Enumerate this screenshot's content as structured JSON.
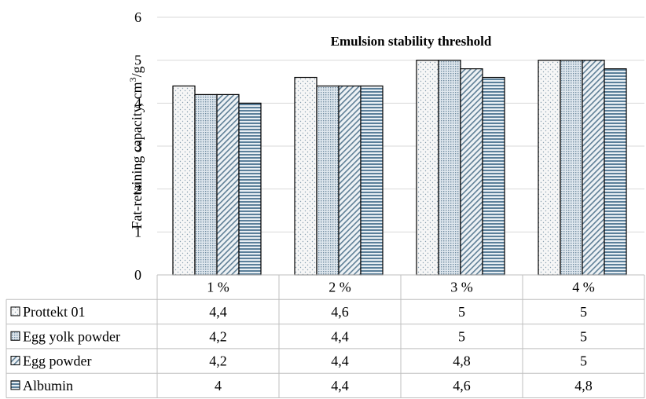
{
  "chart_data": {
    "type": "bar",
    "title": "",
    "annotation": "Emulsion stability threshold",
    "xlabel": "",
    "ylabel_main": "Fat-retaining capacity, cm",
    "ylabel_sup": "3",
    "ylabel_tail": "/g",
    "ylim": [
      0,
      6
    ],
    "yticks": [
      "0",
      "1",
      "2",
      "3",
      "4",
      "5",
      "6"
    ],
    "grid": true,
    "legend": "data-table",
    "categories": [
      "1 %",
      "2 %",
      "3 %",
      "4 %"
    ],
    "series": [
      {
        "name": "Prottekt 01",
        "values": [
          4.4,
          4.6,
          5,
          5
        ],
        "labels": [
          "4,4",
          "4,6",
          "5",
          "5"
        ],
        "pattern": "dots",
        "color": "#f4f4f4"
      },
      {
        "name": "Egg yolk powder",
        "values": [
          4.2,
          4.4,
          5,
          5
        ],
        "labels": [
          "4,2",
          "4,4",
          "5",
          "5"
        ],
        "pattern": "fine-dots",
        "color": "#c8d6e0"
      },
      {
        "name": "Egg powder",
        "values": [
          4.2,
          4.4,
          4.8,
          5
        ],
        "labels": [
          "4,2",
          "4,4",
          "4,8",
          "5"
        ],
        "pattern": "diagonal",
        "color": "#9ab4c6"
      },
      {
        "name": "Albumin",
        "values": [
          4,
          4.4,
          4.6,
          4.8
        ],
        "labels": [
          "4",
          "4,4",
          "4,6",
          "4,8"
        ],
        "pattern": "horizontal",
        "color": "#6f93ad"
      }
    ]
  }
}
